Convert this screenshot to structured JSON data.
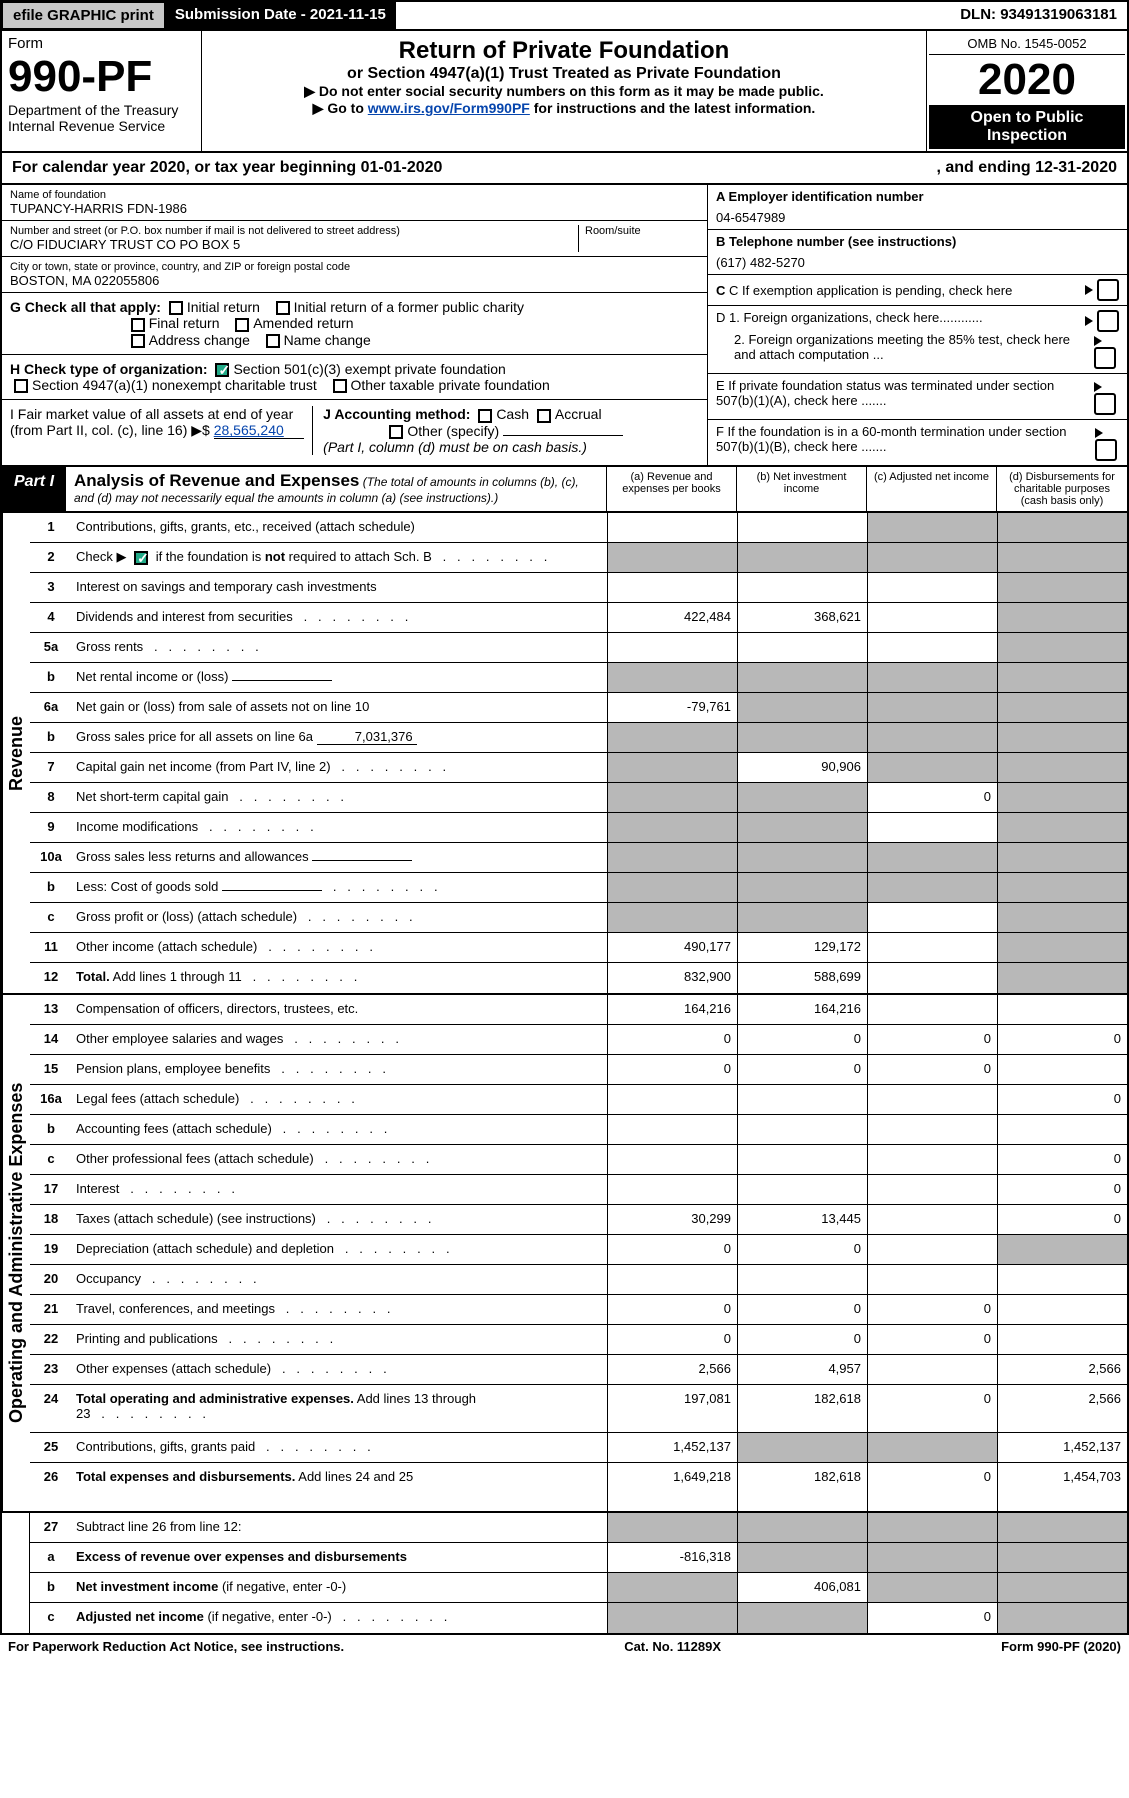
{
  "topbar": {
    "efile": "efile GRAPHIC print",
    "subdate_lbl": "Submission Date - ",
    "subdate": "2021-11-15",
    "dln": "DLN: 93491319063181"
  },
  "header": {
    "form_word": "Form",
    "form_num": "990-PF",
    "dept": "Department of the Treasury",
    "irs": "Internal Revenue Service",
    "title": "Return of Private Foundation",
    "subtitle": "or Section 4947(a)(1) Trust Treated as Private Foundation",
    "warn": "▶ Do not enter social security numbers on this form as it may be made public.",
    "goto": "▶ Go to ",
    "goto_link": "www.irs.gov/Form990PF",
    "goto_after": " for instructions and the latest information.",
    "omb": "OMB No. 1545-0052",
    "year": "2020",
    "open": "Open to Public Inspection"
  },
  "calyear": {
    "a": "For calendar year 2020, or tax year beginning 01-01-2020",
    "b": ", and ending 12-31-2020"
  },
  "info": {
    "name_lbl": "Name of foundation",
    "name": "TUPANCY-HARRIS FDN-1986",
    "addr_lbl": "Number and street (or P.O. box number if mail is not delivered to street address)",
    "addr": "C/O FIDUCIARY TRUST CO PO BOX 5",
    "room_lbl": "Room/suite",
    "city_lbl": "City or town, state or province, country, and ZIP or foreign postal code",
    "city": "BOSTON, MA  022055806",
    "ein_lbl": "A Employer identification number",
    "ein": "04-6547989",
    "phone_lbl": "B Telephone number (see instructions)",
    "phone": "(617) 482-5270",
    "c_lbl": "C If exemption application is pending, check here",
    "d1": "D 1. Foreign organizations, check here............",
    "d2": "2. Foreign organizations meeting the 85% test, check here and attach computation ...",
    "e": "E  If private foundation status was terminated under section 507(b)(1)(A), check here .......",
    "f": "F  If the foundation is in a 60-month termination under section 507(b)(1)(B), check here .......",
    "g_lbl": "G Check all that apply:",
    "g_opts": [
      "Initial return",
      "Initial return of a former public charity",
      "Final return",
      "Amended return",
      "Address change",
      "Name change"
    ],
    "h_lbl": "H Check type of organization:",
    "h_opts": [
      "Section 501(c)(3) exempt private foundation",
      "Section 4947(a)(1) nonexempt charitable trust",
      "Other taxable private foundation"
    ],
    "i_lbl": "I Fair market value of all assets at end of year (from Part II, col. (c), line 16) ▶$",
    "i_val": "28,565,240",
    "j_lbl": "J Accounting method:",
    "j_opts": [
      "Cash",
      "Accrual",
      "Other (specify)"
    ],
    "j_note": "(Part I, column (d) must be on cash basis.)"
  },
  "part1": {
    "tag": "Part I",
    "title": "Analysis of Revenue and Expenses",
    "paren": " (The total of amounts in columns (b), (c), and (d) may not necessarily equal the amounts in column (a) (see instructions).)",
    "cols": [
      "(a)   Revenue and expenses per books",
      "(b)   Net investment income",
      "(c)   Adjusted net income",
      "(d)  Disbursements for charitable purposes (cash basis only)"
    ]
  },
  "sidebars": {
    "rev": "Revenue",
    "exp": "Operating and Administrative Expenses"
  },
  "rows_rev": [
    {
      "n": "1",
      "d": "Contributions, gifts, grants, etc., received (attach schedule)",
      "a": "",
      "b": "",
      "c": "sh",
      "e": "sh"
    },
    {
      "n": "2",
      "d": "Check ▶ [✓] if the foundation is <b>not</b> required to attach Sch. B",
      "dots": true,
      "a": "sh",
      "b": "sh",
      "c": "sh",
      "e": "sh",
      "nocells": true
    },
    {
      "n": "3",
      "d": "Interest on savings and temporary cash investments",
      "a": "",
      "b": "",
      "c": "",
      "e": "sh"
    },
    {
      "n": "4",
      "d": "Dividends and interest from securities",
      "dots": true,
      "a": "422,484",
      "b": "368,621",
      "c": "",
      "e": "sh"
    },
    {
      "n": "5a",
      "d": "Gross rents",
      "dots": true,
      "a": "",
      "b": "",
      "c": "",
      "e": "sh"
    },
    {
      "n": "b",
      "d": "Net rental income or (loss)",
      "inline": "",
      "a": "sh",
      "b": "sh",
      "c": "sh",
      "e": "sh"
    },
    {
      "n": "6a",
      "d": "Net gain or (loss) from sale of assets not on line 10",
      "a": "-79,761",
      "b": "sh",
      "c": "sh",
      "e": "sh"
    },
    {
      "n": "b",
      "d": "Gross sales price for all assets on line 6a",
      "inline": "7,031,376",
      "a": "sh",
      "b": "sh",
      "c": "sh",
      "e": "sh"
    },
    {
      "n": "7",
      "d": "Capital gain net income (from Part IV, line 2)",
      "dots": true,
      "a": "sh",
      "b": "90,906",
      "c": "sh",
      "e": "sh"
    },
    {
      "n": "8",
      "d": "Net short-term capital gain",
      "dots": true,
      "a": "sh",
      "b": "sh",
      "c": "0",
      "e": "sh"
    },
    {
      "n": "9",
      "d": "Income modifications",
      "dots": true,
      "a": "sh",
      "b": "sh",
      "c": "",
      "e": "sh"
    },
    {
      "n": "10a",
      "d": "Gross sales less returns and allowances",
      "inline": "",
      "a": "sh",
      "b": "sh",
      "c": "sh",
      "e": "sh"
    },
    {
      "n": "b",
      "d": "Less: Cost of goods sold",
      "dots": true,
      "inline": "",
      "a": "sh",
      "b": "sh",
      "c": "sh",
      "e": "sh"
    },
    {
      "n": "c",
      "d": "Gross profit or (loss) (attach schedule)",
      "dots": true,
      "a": "sh",
      "b": "sh",
      "c": "",
      "e": "sh"
    },
    {
      "n": "11",
      "d": "Other income (attach schedule)",
      "dots": true,
      "a": "490,177",
      "b": "129,172",
      "c": "",
      "e": "sh"
    },
    {
      "n": "12",
      "d": "<b>Total.</b> Add lines 1 through 11",
      "dots": true,
      "a": "832,900",
      "b": "588,699",
      "c": "",
      "e": "sh"
    }
  ],
  "rows_exp": [
    {
      "n": "13",
      "d": "Compensation of officers, directors, trustees, etc.",
      "a": "164,216",
      "b": "164,216",
      "c": "",
      "e": ""
    },
    {
      "n": "14",
      "d": "Other employee salaries and wages",
      "dots": true,
      "a": "0",
      "b": "0",
      "c": "0",
      "e": "0"
    },
    {
      "n": "15",
      "d": "Pension plans, employee benefits",
      "dots": true,
      "a": "0",
      "b": "0",
      "c": "0",
      "e": ""
    },
    {
      "n": "16a",
      "d": "Legal fees (attach schedule)",
      "dots": true,
      "a": "",
      "b": "",
      "c": "",
      "e": "0"
    },
    {
      "n": "b",
      "d": "Accounting fees (attach schedule)",
      "dots": true,
      "a": "",
      "b": "",
      "c": "",
      "e": ""
    },
    {
      "n": "c",
      "d": "Other professional fees (attach schedule)",
      "dots": true,
      "a": "",
      "b": "",
      "c": "",
      "e": "0"
    },
    {
      "n": "17",
      "d": "Interest",
      "dots": true,
      "a": "",
      "b": "",
      "c": "",
      "e": "0"
    },
    {
      "n": "18",
      "d": "Taxes (attach schedule) (see instructions)",
      "dots": true,
      "a": "30,299",
      "b": "13,445",
      "c": "",
      "e": "0"
    },
    {
      "n": "19",
      "d": "Depreciation (attach schedule) and depletion",
      "dots": true,
      "a": "0",
      "b": "0",
      "c": "",
      "e": "sh"
    },
    {
      "n": "20",
      "d": "Occupancy",
      "dots": true,
      "a": "",
      "b": "",
      "c": "",
      "e": ""
    },
    {
      "n": "21",
      "d": "Travel, conferences, and meetings",
      "dots": true,
      "a": "0",
      "b": "0",
      "c": "0",
      "e": ""
    },
    {
      "n": "22",
      "d": "Printing and publications",
      "dots": true,
      "a": "0",
      "b": "0",
      "c": "0",
      "e": ""
    },
    {
      "n": "23",
      "d": "Other expenses (attach schedule)",
      "dots": true,
      "a": "2,566",
      "b": "4,957",
      "c": "",
      "e": "2,566"
    },
    {
      "n": "24",
      "d": "<b>Total operating and administrative expenses.</b> Add lines 13 through 23",
      "dots": true,
      "a": "197,081",
      "b": "182,618",
      "c": "0",
      "e": "2,566",
      "tall": true
    },
    {
      "n": "25",
      "d": "Contributions, gifts, grants paid",
      "dots": true,
      "a": "1,452,137",
      "b": "sh",
      "c": "sh",
      "e": "1,452,137"
    },
    {
      "n": "26",
      "d": "<b>Total expenses and disbursements.</b> Add lines 24 and 25",
      "a": "1,649,218",
      "b": "182,618",
      "c": "0",
      "e": "1,454,703",
      "tall": true
    }
  ],
  "rows_end": [
    {
      "n": "27",
      "d": "Subtract line 26 from line 12:",
      "a": "sh",
      "b": "sh",
      "c": "sh",
      "e": "sh"
    },
    {
      "n": "a",
      "d": "<b>Excess of revenue over expenses and disbursements</b>",
      "a": "-816,318",
      "b": "sh",
      "c": "sh",
      "e": "sh"
    },
    {
      "n": "b",
      "d": "<b>Net investment income</b> (if negative, enter -0-)",
      "a": "sh",
      "b": "406,081",
      "c": "sh",
      "e": "sh"
    },
    {
      "n": "c",
      "d": "<b>Adjusted net income</b> (if negative, enter -0-)",
      "dots": true,
      "a": "sh",
      "b": "sh",
      "c": "0",
      "e": "sh"
    }
  ],
  "footer": {
    "left": "For Paperwork Reduction Act Notice, see instructions.",
    "mid": "Cat. No. 11289X",
    "right": "Form 990-PF (2020)"
  }
}
